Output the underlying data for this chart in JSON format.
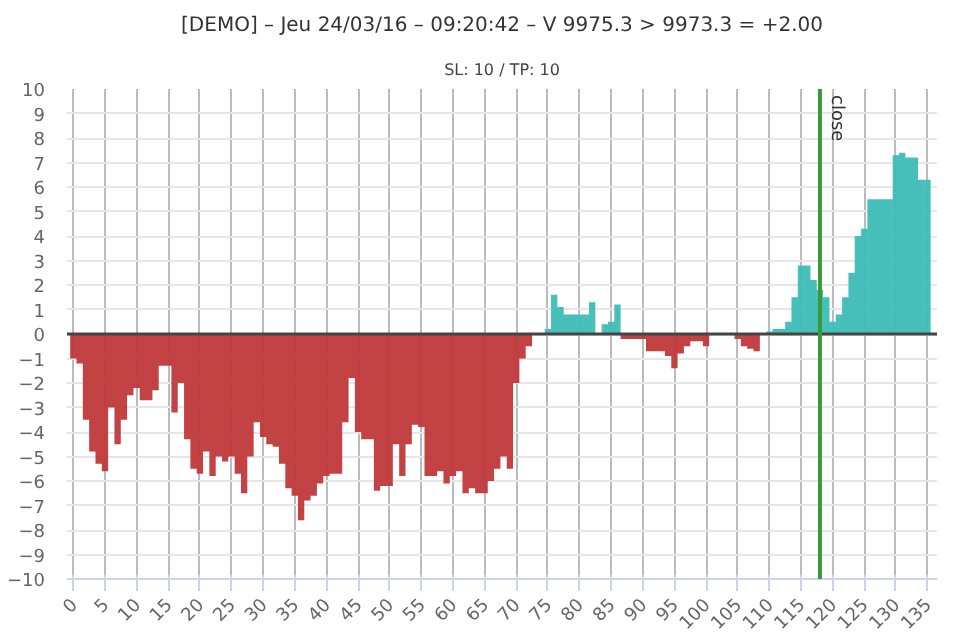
{
  "chart_data": {
    "type": "area",
    "title": "[DEMO] – Jeu 24/03/16 – 09:20:42 – V 9975.3 > 9973.3 = +2.00",
    "subtitle": "SL: 10 / TP: 10",
    "x": [
      0,
      1,
      2,
      3,
      4,
      5,
      6,
      7,
      8,
      9,
      10,
      11,
      12,
      13,
      14,
      15,
      16,
      17,
      18,
      19,
      20,
      21,
      22,
      23,
      24,
      25,
      26,
      27,
      28,
      29,
      30,
      31,
      32,
      33,
      34,
      35,
      36,
      37,
      38,
      39,
      40,
      41,
      42,
      43,
      44,
      45,
      46,
      47,
      48,
      49,
      50,
      51,
      52,
      53,
      54,
      55,
      56,
      57,
      58,
      59,
      60,
      61,
      62,
      63,
      64,
      65,
      66,
      67,
      68,
      69,
      70,
      71,
      72,
      73,
      74,
      75,
      76,
      77,
      78,
      79,
      80,
      81,
      82,
      83,
      84,
      85,
      86,
      87,
      88,
      89,
      90,
      91,
      92,
      93,
      94,
      95,
      96,
      97,
      98,
      99,
      100,
      101,
      102,
      103,
      104,
      105,
      106,
      107,
      108,
      109,
      110,
      111,
      112,
      113,
      114,
      115,
      116,
      117,
      118,
      119,
      120,
      121,
      122,
      123,
      124,
      125,
      126,
      127,
      128,
      129,
      130,
      131,
      132,
      133,
      134,
      135
    ],
    "series": [
      {
        "color": "#c0393b",
        "values": [
          -1,
          -1.2,
          -3.5,
          -4.8,
          -5.3,
          -5.6,
          -3,
          -4.5,
          -3.5,
          -2.5,
          -2.2,
          -2.7,
          -2.7,
          -2.3,
          -1.3,
          -1.3,
          -3.2,
          -2,
          -4.3,
          -5.5,
          -5.7,
          -4.8,
          -5.8,
          -5,
          -5.2,
          -5,
          -5.7,
          -6.5,
          -5,
          -3.6,
          -4.2,
          -4.5,
          -4.6,
          -5.3,
          -6.3,
          -6.6,
          -7.6,
          -6.8,
          -6.6,
          -6.1,
          -5.8,
          -5.7,
          -5.7,
          -3.6,
          -1.8,
          -4,
          -4.3,
          -4.3,
          -6.4,
          -6.2,
          -6.2,
          -4.5,
          -5.8,
          -4.5,
          -3.7,
          -3.8,
          -5.8,
          -5.8,
          -5.6,
          -6.1,
          -5.8,
          -5.6,
          -6.5,
          -6.3,
          -6.5,
          -6.5,
          -6,
          -5.5,
          -5,
          -5.5,
          -2,
          -1,
          -0.5,
          null,
          null,
          null,
          null,
          null,
          null,
          null,
          null,
          null,
          null,
          null,
          null,
          null,
          null,
          -0.2,
          -0.2,
          -0.2,
          -0.2,
          -0.7,
          -0.7,
          -0.7,
          -0.9,
          -1.4,
          -0.8,
          -0.5,
          -0.3,
          -0.3,
          -0.5,
          null,
          null,
          null,
          null,
          -0.2,
          -0.5,
          -0.6,
          -0.7,
          0,
          null,
          null,
          null,
          null,
          null,
          null,
          null,
          null,
          null,
          null,
          null,
          null,
          null,
          null,
          null,
          null,
          null,
          null,
          null,
          null,
          null,
          null,
          null,
          null,
          null,
          null
        ]
      },
      {
        "color": "#3dbdb8",
        "values": [
          null,
          null,
          null,
          null,
          null,
          null,
          null,
          null,
          null,
          null,
          null,
          null,
          null,
          null,
          null,
          null,
          null,
          null,
          null,
          null,
          null,
          null,
          null,
          null,
          null,
          null,
          null,
          null,
          null,
          null,
          null,
          null,
          null,
          null,
          null,
          null,
          null,
          null,
          null,
          null,
          null,
          null,
          null,
          null,
          null,
          null,
          null,
          null,
          null,
          null,
          null,
          null,
          null,
          null,
          null,
          null,
          null,
          null,
          null,
          null,
          null,
          null,
          null,
          null,
          null,
          null,
          null,
          null,
          null,
          null,
          null,
          null,
          null,
          null,
          null,
          0.2,
          1.6,
          1.1,
          0.8,
          0.8,
          0.8,
          0.8,
          1.3,
          null,
          0.4,
          0.5,
          1.2,
          null,
          null,
          null,
          null,
          null,
          null,
          null,
          null,
          null,
          null,
          null,
          null,
          null,
          null,
          null,
          null,
          null,
          null,
          null,
          null,
          null,
          null,
          null,
          0.1,
          0.2,
          0.2,
          0.5,
          1.5,
          2.8,
          2.8,
          2.2,
          1.8,
          1.5,
          0.5,
          0.8,
          1.5,
          2.5,
          4,
          4.3,
          5.5,
          5.5,
          5.5,
          5.5,
          7.3,
          7.4,
          7.2,
          7.2,
          6.3,
          6.3
        ]
      }
    ],
    "xlim": [
      -1,
      136.5
    ],
    "ylim": [
      -10,
      10
    ],
    "xticks": [
      0,
      5,
      10,
      15,
      20,
      25,
      30,
      35,
      40,
      45,
      50,
      55,
      60,
      65,
      70,
      75,
      80,
      85,
      90,
      95,
      100,
      105,
      110,
      115,
      120,
      125,
      130,
      135
    ],
    "yticks": [
      -10,
      -9,
      -8,
      -7,
      -6,
      -5,
      -4,
      -3,
      -2,
      -1,
      0,
      1,
      2,
      3,
      4,
      5,
      6,
      7,
      8,
      9,
      10
    ],
    "ref_lines": [
      {
        "axis": "y",
        "value": 0,
        "color": "#444444"
      },
      {
        "axis": "x",
        "value": 118,
        "label": "close",
        "color": "#3a9a3a"
      }
    ],
    "grid": true
  }
}
